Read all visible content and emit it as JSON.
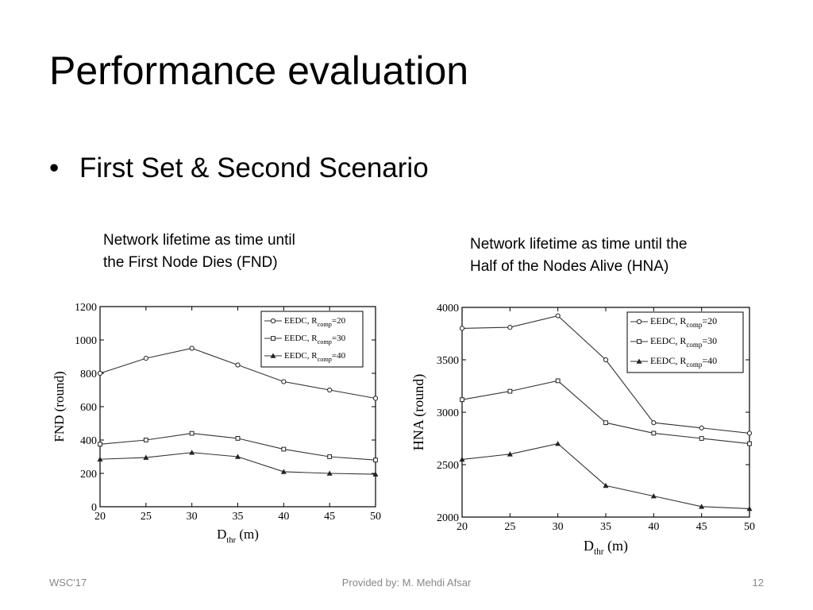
{
  "slide": {
    "title": "Performance evaluation",
    "bullet": "First Set & Second Scenario",
    "bullet_symbol": "•",
    "captions": {
      "left": [
        "Network lifetime as time until",
        "the First Node Dies (FND)"
      ],
      "right": [
        "Network lifetime as time until the",
        "Half of the Nodes Alive (HNA)"
      ]
    },
    "footer": {
      "left": "WSC'17",
      "center": "Provided by: M. Mehdi Afsar",
      "right": "12"
    }
  },
  "chart_data": [
    {
      "type": "line",
      "ylabel": "FND (round)",
      "xlabel_main": "D",
      "xlabel_sub": "thr",
      "xlabel_unit": " (m)",
      "x": [
        20,
        25,
        30,
        35,
        40,
        45,
        50
      ],
      "xticks": [
        "20",
        "25",
        "30",
        "35",
        "40",
        "45",
        "50"
      ],
      "ylim": [
        0,
        1200
      ],
      "yticks": [
        0,
        200,
        400,
        600,
        800,
        1000,
        1200
      ],
      "grid": false,
      "legend_position": "top-right",
      "series": [
        {
          "legend_main": "EEDC, R",
          "legend_sub": "comp",
          "legend_value": "=20",
          "marker": "circle",
          "values": [
            800,
            890,
            950,
            850,
            750,
            700,
            650
          ]
        },
        {
          "legend_main": "EEDC, R",
          "legend_sub": "comp",
          "legend_value": "=30",
          "marker": "square",
          "values": [
            375,
            400,
            440,
            410,
            345,
            300,
            280
          ]
        },
        {
          "legend_main": "EEDC, R",
          "legend_sub": "comp",
          "legend_value": "=40",
          "marker": "triangle",
          "values": [
            285,
            295,
            325,
            300,
            210,
            200,
            195
          ]
        }
      ]
    },
    {
      "type": "line",
      "ylabel": "HNA (round)",
      "xlabel_main": "D",
      "xlabel_sub": "thr",
      "xlabel_unit": " (m)",
      "x": [
        20,
        25,
        30,
        35,
        40,
        45,
        50
      ],
      "xticks": [
        "20",
        "25",
        "30",
        "35",
        "40",
        "45",
        "50"
      ],
      "ylim": [
        2000,
        4000
      ],
      "yticks": [
        2000,
        2500,
        3000,
        3500,
        4000
      ],
      "grid": false,
      "legend_position": "top-right",
      "series": [
        {
          "legend_main": "EEDC, R",
          "legend_sub": "comp",
          "legend_value": "=20",
          "marker": "circle",
          "values": [
            3800,
            3810,
            3920,
            3500,
            2900,
            2850,
            2800
          ]
        },
        {
          "legend_main": "EEDC, R",
          "legend_sub": "comp",
          "legend_value": "=30",
          "marker": "square",
          "values": [
            3120,
            3200,
            3300,
            2900,
            2800,
            2750,
            2700
          ]
        },
        {
          "legend_main": "EEDC, R",
          "legend_sub": "comp",
          "legend_value": "=40",
          "marker": "triangle",
          "values": [
            2550,
            2600,
            2700,
            2300,
            2200,
            2100,
            2080
          ]
        }
      ]
    }
  ]
}
